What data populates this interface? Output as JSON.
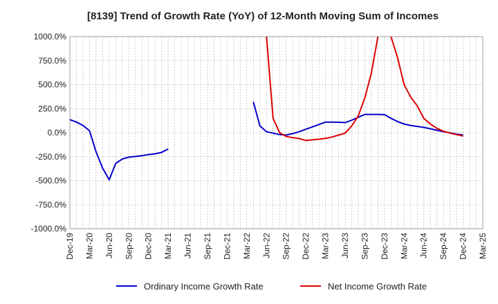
{
  "chart_data": {
    "type": "line",
    "title": "[8139]  Trend of Growth Rate (YoY) of 12-Month Moving Sum of Incomes",
    "xlabel": "",
    "ylabel": "",
    "ylim": [
      -1000,
      1000
    ],
    "y_ticks": [
      "1000.0%",
      "750.0%",
      "500.0%",
      "250.0%",
      "0.0%",
      "-250.0%",
      "-500.0%",
      "-750.0%",
      "-1000.0%"
    ],
    "y_tick_values": [
      1000,
      750,
      500,
      250,
      0,
      -250,
      -500,
      -750,
      -1000
    ],
    "x_ticks": [
      "Dec-19",
      "Mar-20",
      "Jun-20",
      "Sep-20",
      "Dec-20",
      "Mar-21",
      "Jun-21",
      "Sep-21",
      "Dec-21",
      "Mar-22",
      "Jun-22",
      "Sep-22",
      "Dec-22",
      "Mar-23",
      "Jun-23",
      "Sep-23",
      "Dec-23",
      "Mar-24",
      "Jun-24",
      "Sep-24",
      "Dec-24",
      "Mar-25"
    ],
    "x_start": "2019-12",
    "x_end": "2025-03",
    "grid": true,
    "legend_position": "bottom",
    "series": [
      {
        "name": "Ordinary Income Growth Rate",
        "color": "#0000cc",
        "points": [
          [
            "2019-12",
            135
          ],
          [
            "2020-01",
            110
          ],
          [
            "2020-02",
            75
          ],
          [
            "2020-03",
            20
          ],
          [
            "2020-04",
            -200
          ],
          [
            "2020-05",
            -370
          ],
          [
            "2020-06",
            -490
          ],
          [
            "2020-07",
            -320
          ],
          [
            "2020-08",
            -275
          ],
          [
            "2020-09",
            -255
          ],
          [
            "2020-10",
            -248
          ],
          [
            "2020-11",
            -240
          ],
          [
            "2020-12",
            -228
          ],
          [
            "2021-01",
            -220
          ],
          [
            "2021-02",
            -205
          ],
          [
            "2021-03",
            -170
          ],
          [
            "2022-04",
            320
          ],
          [
            "2022-05",
            70
          ],
          [
            "2022-06",
            10
          ],
          [
            "2022-07",
            -5
          ],
          [
            "2022-08",
            -20
          ],
          [
            "2022-09",
            -25
          ],
          [
            "2022-10",
            -10
          ],
          [
            "2022-11",
            10
          ],
          [
            "2022-12",
            35
          ],
          [
            "2023-01",
            60
          ],
          [
            "2023-02",
            85
          ],
          [
            "2023-03",
            110
          ],
          [
            "2023-04",
            110
          ],
          [
            "2023-05",
            108
          ],
          [
            "2023-06",
            105
          ],
          [
            "2023-07",
            130
          ],
          [
            "2023-08",
            160
          ],
          [
            "2023-09",
            190
          ],
          [
            "2023-10",
            190
          ],
          [
            "2023-11",
            190
          ],
          [
            "2023-12",
            188
          ],
          [
            "2024-01",
            150
          ],
          [
            "2024-02",
            115
          ],
          [
            "2024-03",
            90
          ],
          [
            "2024-04",
            75
          ],
          [
            "2024-05",
            65
          ],
          [
            "2024-06",
            55
          ],
          [
            "2024-07",
            40
          ],
          [
            "2024-08",
            25
          ],
          [
            "2024-09",
            10
          ],
          [
            "2024-10",
            -2
          ],
          [
            "2024-11",
            -15
          ],
          [
            "2024-12",
            -25
          ]
        ]
      },
      {
        "name": "Net Income Growth Rate",
        "color": "#dd0000",
        "points": [
          [
            "2022-06",
            1000
          ],
          [
            "2022-07",
            150
          ],
          [
            "2022-08",
            0
          ],
          [
            "2022-09",
            -40
          ],
          [
            "2022-10",
            -52
          ],
          [
            "2022-11",
            -62
          ],
          [
            "2022-12",
            -82
          ],
          [
            "2023-01",
            -75
          ],
          [
            "2023-02",
            -68
          ],
          [
            "2023-03",
            -60
          ],
          [
            "2023-04",
            -45
          ],
          [
            "2023-05",
            -25
          ],
          [
            "2023-06",
            -5
          ],
          [
            "2023-07",
            70
          ],
          [
            "2023-08",
            175
          ],
          [
            "2023-09",
            360
          ],
          [
            "2023-10",
            620
          ],
          [
            "2023-11",
            1000
          ],
          [
            "2024-01",
            1000
          ],
          [
            "2024-02",
            780
          ],
          [
            "2024-03",
            500
          ],
          [
            "2024-04",
            370
          ],
          [
            "2024-05",
            280
          ],
          [
            "2024-06",
            150
          ],
          [
            "2024-07",
            90
          ],
          [
            "2024-08",
            45
          ],
          [
            "2024-09",
            15
          ],
          [
            "2024-10",
            -5
          ],
          [
            "2024-11",
            -20
          ],
          [
            "2024-12",
            -35
          ]
        ]
      }
    ]
  }
}
